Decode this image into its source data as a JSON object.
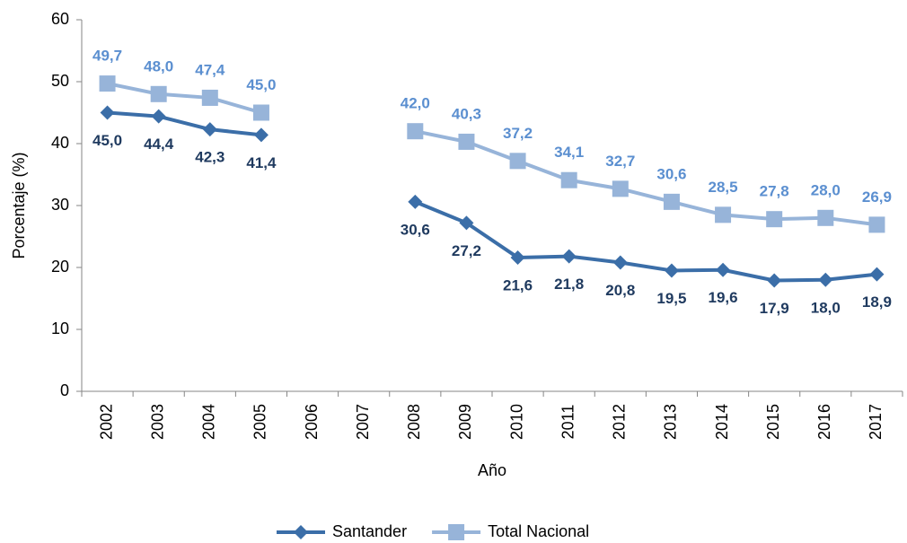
{
  "chart_data": {
    "type": "line",
    "y_label": "Porcentaje (%)",
    "x_label": "Año",
    "categories": [
      "2002",
      "2003",
      "2004",
      "2005",
      "2006",
      "2007",
      "2008",
      "2009",
      "2010",
      "2011",
      "2012",
      "2013",
      "2014",
      "2015",
      "2016",
      "2017"
    ],
    "ylim": [
      0,
      60
    ],
    "yticks": [
      0,
      10,
      20,
      30,
      40,
      50,
      60
    ],
    "grid": false,
    "series": [
      {
        "name": "Santander",
        "color": "#3b6ea8",
        "label_color": "#1f3a5f",
        "marker": "diamond",
        "label_position": "below",
        "values": [
          45.0,
          44.4,
          42.3,
          41.4,
          null,
          null,
          30.6,
          27.2,
          21.6,
          21.8,
          20.8,
          19.5,
          19.6,
          17.9,
          18.0,
          18.9
        ],
        "value_labels": [
          "45,0",
          "44,4",
          "42,3",
          "41,4",
          null,
          null,
          "30,6",
          "27,2",
          "21,6",
          "21,8",
          "20,8",
          "19,5",
          "19,6",
          "17,9",
          "18,0",
          "18,9"
        ]
      },
      {
        "name": "Total Nacional",
        "color": "#97b4d9",
        "label_color": "#5b8fd0",
        "marker": "square",
        "label_position": "above",
        "values": [
          49.7,
          48.0,
          47.4,
          45.0,
          null,
          null,
          42.0,
          40.3,
          37.2,
          34.1,
          32.7,
          30.6,
          28.5,
          27.8,
          28.0,
          26.9
        ],
        "value_labels": [
          "49,7",
          "48,0",
          "47,4",
          "45,0",
          null,
          null,
          "42,0",
          "40,3",
          "37,2",
          "34,1",
          "32,7",
          "30,6",
          "28,5",
          "27,8",
          "28,0",
          "26,9"
        ]
      }
    ],
    "legend": "bottom"
  }
}
